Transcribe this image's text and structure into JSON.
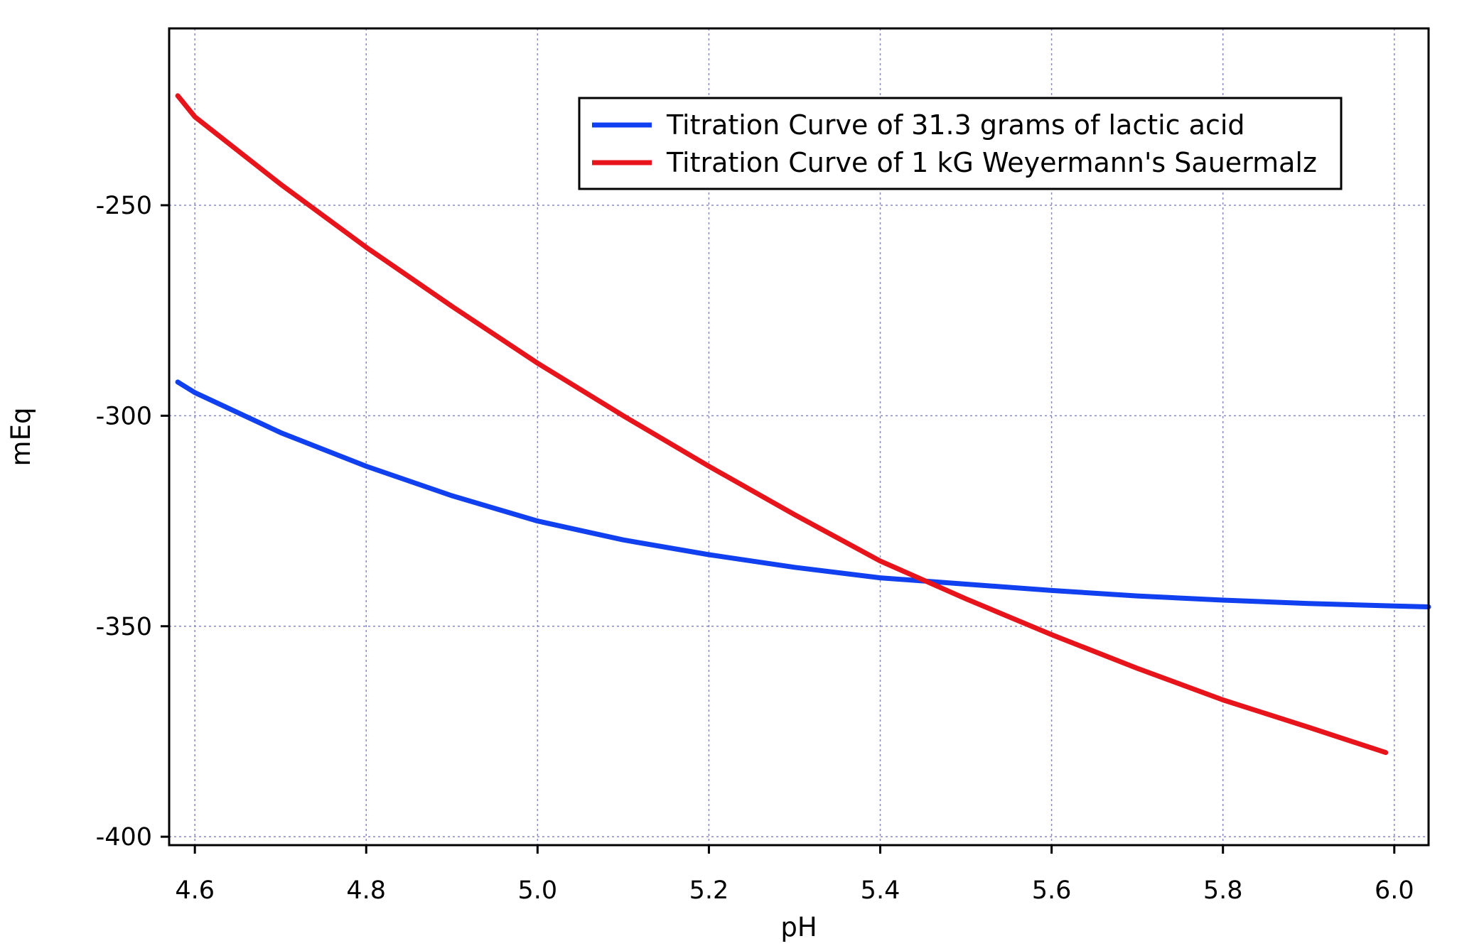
{
  "chart_data": {
    "type": "line",
    "title": "",
    "xlabel": "pH",
    "ylabel": "mEq",
    "xlim": [
      4.57,
      6.04
    ],
    "ylim": [
      -402,
      -208
    ],
    "x_ticks": [
      4.6,
      4.8,
      5.0,
      5.2,
      5.4,
      5.6,
      5.8,
      6.0
    ],
    "x_tick_labels": [
      "4.6",
      "4.8",
      "5.0",
      "5.2",
      "5.4",
      "5.6",
      "5.8",
      "6.0"
    ],
    "y_ticks": [
      -250,
      -300,
      -350,
      -400
    ],
    "y_tick_labels": [
      "-250",
      "-300",
      "-350",
      "-400"
    ],
    "grid": true,
    "legend_position": "top-right",
    "series": [
      {
        "name": "Titration Curve of 31.3 grams of lactic acid",
        "color": "#1040f0",
        "x": [
          4.58,
          4.6,
          4.7,
          4.8,
          4.9,
          5.0,
          5.1,
          5.2,
          5.3,
          5.4,
          5.5,
          5.6,
          5.7,
          5.8,
          5.9,
          6.0,
          6.04
        ],
        "y": [
          -292,
          -294.5,
          -304,
          -312,
          -319,
          -325,
          -329.5,
          -333,
          -336,
          -338.5,
          -340,
          -341.5,
          -342.8,
          -343.8,
          -344.6,
          -345.2,
          -345.4
        ]
      },
      {
        "name": "Titration Curve of 1 kG Weyermann's Sauermalz",
        "color": "#e8141c",
        "x": [
          4.58,
          4.6,
          4.7,
          4.8,
          4.9,
          5.0,
          5.1,
          5.2,
          5.3,
          5.4,
          5.5,
          5.6,
          5.7,
          5.8,
          5.9,
          5.99
        ],
        "y": [
          -224,
          -229,
          -245,
          -260,
          -274,
          -287.5,
          -300,
          -312,
          -323.5,
          -334.5,
          -343.5,
          -352,
          -360,
          -367.5,
          -374,
          -380
        ]
      }
    ]
  }
}
